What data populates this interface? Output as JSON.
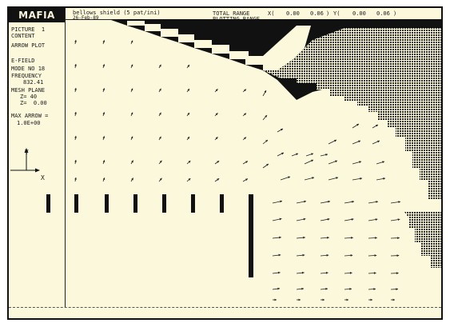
{
  "app": {
    "logo": "MAFIA",
    "file_title": "bellows shield (5 pat/ini)",
    "subtitle": "26-Feb-89"
  },
  "sidebar": {
    "picture_line": "PICTURE  1",
    "content_label": "CONTENT",
    "content_value": "ARROW PLOT",
    "field_label": "E-FIELD",
    "mode_label": "MODE NO 18",
    "frequency_label": "FREQUENCY",
    "frequency_value": "832.41",
    "mesh_plane_label": "MESH PLANE",
    "mesh_z_index": "Z= 40",
    "mesh_z_value": "Z=  0.00",
    "max_arrow_label": "MAX ARROW =",
    "max_arrow_value": "1.0E+00"
  },
  "axes": {
    "y_label": "Y",
    "x_label": "X"
  },
  "header_ranges": {
    "total_range_label": "TOTAL RANGE",
    "plotting_range_label": "PLOTTING RANGE",
    "x_open": "X(",
    "y_open": "Y(",
    "close": ")",
    "x_min": "0.00",
    "x_max": "0.06",
    "y_min": "0.00",
    "y_max": "0.06"
  },
  "colors": {
    "paper": "#fcf8dc",
    "ink": "#111111",
    "metal_solid": "#111111",
    "metal_stipple": "#2a2a2a"
  }
}
